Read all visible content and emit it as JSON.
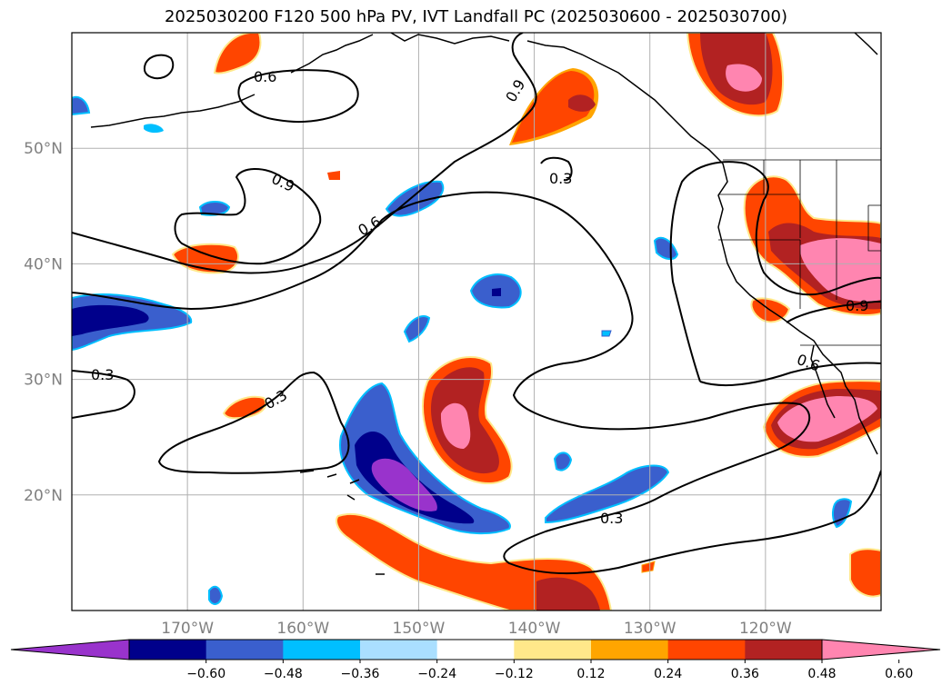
{
  "title": "2025030200 F120 500 hPa PV, IVT Landfall PC (2025030600 - 2025030700)",
  "map": {
    "lon_range": [
      -180,
      -110
    ],
    "lat_range": [
      10,
      60
    ],
    "gridlines": true,
    "lat_ticks": [
      {
        "value": 20,
        "label": "20°N"
      },
      {
        "value": 30,
        "label": "30°N"
      },
      {
        "value": 40,
        "label": "40°N"
      },
      {
        "value": 50,
        "label": "50°N"
      }
    ],
    "lon_ticks": [
      {
        "value": -170,
        "label": "170°W"
      },
      {
        "value": -160,
        "label": "160°W"
      },
      {
        "value": -150,
        "label": "150°W"
      },
      {
        "value": -140,
        "label": "140°W"
      },
      {
        "value": -130,
        "label": "130°W"
      },
      {
        "value": -120,
        "label": "120°W"
      }
    ],
    "contour_labels": [
      "0.6",
      "0.9",
      "0.9",
      "0.3",
      "0.6",
      "0.3",
      "0.3",
      "0.6",
      "0.9",
      "0.3"
    ]
  },
  "colorbar": {
    "tick_labels": [
      "−0.60",
      "−0.48",
      "−0.36",
      "−0.24",
      "−0.12",
      "0.12",
      "0.24",
      "0.36",
      "0.48",
      "0.60"
    ],
    "colors": [
      "#9933cc",
      "#00008b",
      "#3a5fcd",
      "#00bfff",
      "#aadfff",
      "#ffffff",
      "#ffe88a",
      "#ffa500",
      "#ff4500",
      "#b22222",
      "#ff85b0"
    ],
    "extend": "both"
  },
  "chart_data": {
    "type": "heatmap",
    "title": "2025030200 F120 500 hPa PV, IVT Landfall PC (2025030600 - 2025030700)",
    "levels": [
      -0.6,
      -0.48,
      -0.36,
      -0.24,
      -0.12,
      0.12,
      0.24,
      0.36,
      0.48,
      0.6
    ],
    "contour_levels": [
      0.3,
      0.6,
      0.9
    ],
    "xlim": [
      -180,
      -110
    ],
    "ylim": [
      10,
      60
    ]
  }
}
